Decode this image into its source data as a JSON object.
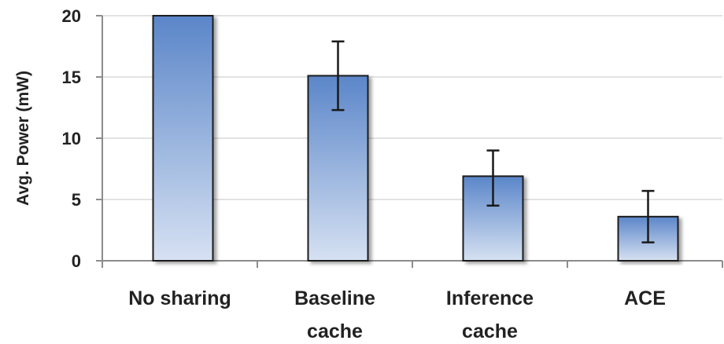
{
  "chart_data": {
    "type": "bar",
    "title": "",
    "xlabel": "",
    "ylabel": "Avg. Power (mW)",
    "ylim": [
      0,
      20
    ],
    "yticks": [
      0,
      5,
      10,
      15,
      20
    ],
    "grid": true,
    "categories": [
      [
        "No sharing"
      ],
      [
        "Baseline",
        "cache"
      ],
      [
        "Inference",
        "cache"
      ],
      [
        "ACE"
      ]
    ],
    "values": [
      20,
      15.1,
      6.9,
      3.6
    ],
    "error_low": [
      null,
      12.3,
      4.5,
      1.5
    ],
    "error_high": [
      null,
      17.9,
      9.0,
      5.7
    ],
    "colors": {
      "bar_top": "#5b86c9",
      "bar_bottom": "#d6e1f2",
      "grid": "#d9d9d9"
    }
  }
}
